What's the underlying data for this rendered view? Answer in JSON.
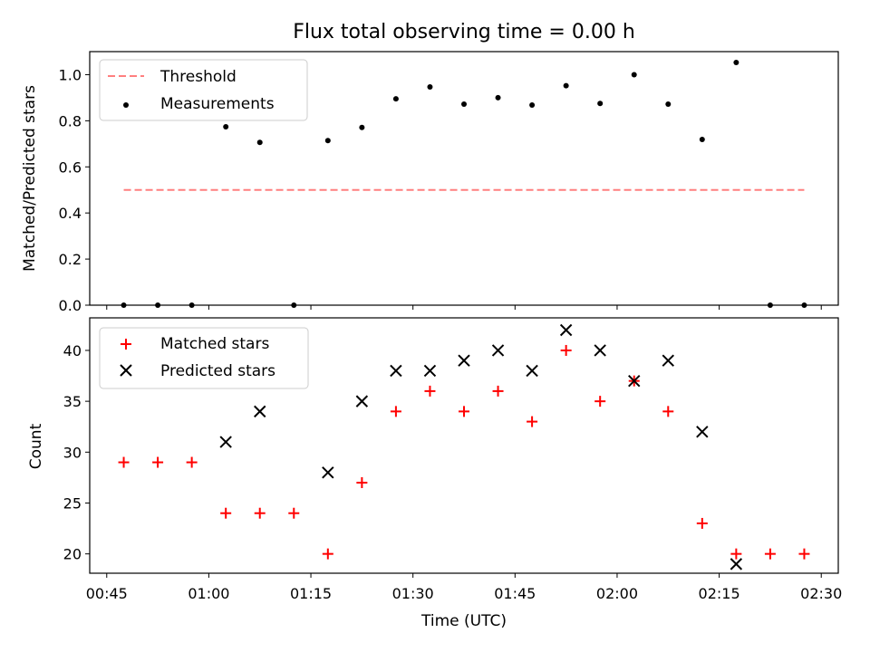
{
  "chart_data": [
    {
      "type": "scatter",
      "title": "Flux total observing time = 0.00 h",
      "xlabel": "",
      "ylabel": "Matched/Predicted stars",
      "ylim": [
        0.0,
        1.1
      ],
      "yticks": [
        "0.0",
        "0.2",
        "0.4",
        "0.6",
        "0.8",
        "1.0"
      ],
      "xlim_minutes": [
        42.5,
        152.5
      ],
      "legend_position": "upper left",
      "series": [
        {
          "name": "Threshold",
          "kind": "dashed-line",
          "color": "#ff7f7f",
          "x": [
            47.5,
            147.5
          ],
          "y": [
            0.5,
            0.5
          ]
        },
        {
          "name": "Measurements",
          "kind": "dot",
          "color": "#000000",
          "x": [
            47.5,
            52.5,
            57.5,
            62.5,
            67.5,
            72.5,
            77.5,
            82.5,
            87.5,
            92.5,
            97.5,
            102.5,
            107.5,
            112.5,
            117.5,
            122.5,
            127.5,
            132.5,
            137.5,
            142.5,
            147.5
          ],
          "y": [
            0.0,
            0.0,
            0.0,
            0.774,
            0.706,
            0.0,
            0.714,
            0.771,
            0.895,
            0.947,
            0.872,
            0.9,
            0.868,
            0.952,
            0.875,
            1.0,
            0.872,
            0.719,
            1.053,
            0.0,
            0.0
          ]
        }
      ]
    },
    {
      "type": "scatter",
      "title": "",
      "xlabel": "Time (UTC)",
      "ylabel": "Count",
      "ylim": [
        18.1,
        43.2
      ],
      "yticks": [
        "20",
        "25",
        "30",
        "35",
        "40"
      ],
      "xlim_minutes": [
        42.5,
        152.5
      ],
      "xticks": [
        "00:45",
        "01:00",
        "01:15",
        "01:30",
        "01:45",
        "02:00",
        "02:15",
        "02:30"
      ],
      "legend_position": "upper left",
      "series": [
        {
          "name": "Matched stars",
          "kind": "plus",
          "color": "#ff0000",
          "x": [
            47.5,
            52.5,
            57.5,
            62.5,
            67.5,
            72.5,
            77.5,
            82.5,
            87.5,
            92.5,
            97.5,
            102.5,
            107.5,
            112.5,
            117.5,
            122.5,
            127.5,
            132.5,
            137.5,
            142.5,
            147.5
          ],
          "y": [
            29,
            29,
            29,
            24,
            24,
            24,
            20,
            27,
            34,
            36,
            34,
            36,
            33,
            40,
            35,
            37,
            34,
            23,
            20,
            20,
            20
          ]
        },
        {
          "name": "Predicted stars",
          "kind": "cross",
          "color": "#000000",
          "x": [
            62.5,
            67.5,
            77.5,
            82.5,
            87.5,
            92.5,
            97.5,
            102.5,
            107.5,
            112.5,
            117.5,
            122.5,
            127.5,
            132.5,
            137.5
          ],
          "y": [
            31,
            34,
            28,
            35,
            38,
            38,
            39,
            40,
            38,
            42,
            40,
            37,
            39,
            32,
            19
          ]
        }
      ]
    }
  ]
}
